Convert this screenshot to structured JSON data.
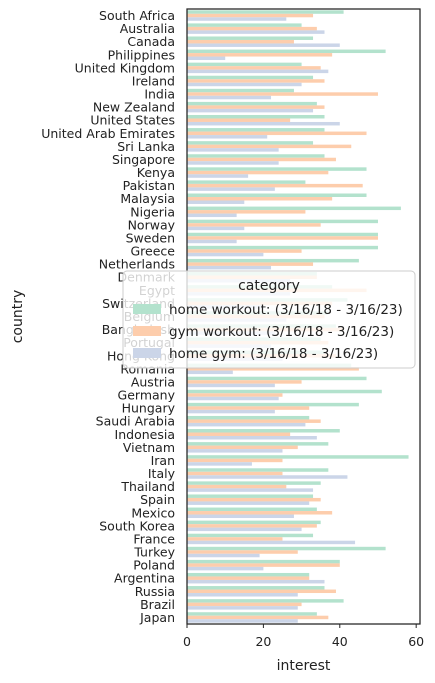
{
  "chart_data": {
    "type": "bar",
    "orientation": "horizontal",
    "xlabel": "interest",
    "ylabel": "country",
    "xlim": [
      0,
      61
    ],
    "xticks": [
      0,
      20,
      40,
      60
    ],
    "grid": false,
    "legend": {
      "title": "category",
      "placement": "center-right"
    },
    "categories": [
      "South Africa",
      "Australia",
      "Canada",
      "Philippines",
      "United Kingdom",
      "Ireland",
      "India",
      "New Zealand",
      "United States",
      "United Arab Emirates",
      "Sri Lanka",
      "Singapore",
      "Kenya",
      "Pakistan",
      "Malaysia",
      "Nigeria",
      "Norway",
      "Sweden",
      "Greece",
      "Netherlands",
      "Denmark",
      "Egypt",
      "Switzerland",
      "Belgium",
      "Bangladesh",
      "Portugal",
      "Hong Kong",
      "Romania",
      "Austria",
      "Germany",
      "Hungary",
      "Saudi Arabia",
      "Indonesia",
      "Vietnam",
      "Iran",
      "Italy",
      "Thailand",
      "Spain",
      "Mexico",
      "South Korea",
      "France",
      "Turkey",
      "Poland",
      "Argentina",
      "Russia",
      "Brazil",
      "Japan"
    ],
    "series": [
      {
        "name": "home workout: (3/16/18 - 3/16/23)",
        "color": "#b3e2cd",
        "values": [
          41,
          30,
          33,
          52,
          30,
          33,
          28,
          34,
          36,
          36,
          33,
          36,
          47,
          31,
          47,
          56,
          50,
          50,
          50,
          45,
          34,
          38,
          42,
          37,
          39,
          35,
          36,
          43,
          47,
          51,
          45,
          32,
          40,
          37,
          58,
          37,
          35,
          33,
          34,
          35,
          33,
          52,
          40,
          32,
          36,
          41,
          34
        ]
      },
      {
        "name": "gym workout: (3/16/18 - 3/16/23)",
        "color": "#fdcdac",
        "values": [
          33,
          34,
          28,
          38,
          35,
          36,
          50,
          36,
          27,
          47,
          43,
          39,
          37,
          46,
          38,
          31,
          35,
          50,
          30,
          33,
          34,
          47,
          38,
          36,
          41,
          37,
          39,
          45,
          30,
          25,
          32,
          35,
          27,
          29,
          25,
          25,
          26,
          35,
          38,
          34,
          25,
          29,
          40,
          32,
          39,
          30,
          37
        ]
      },
      {
        "name": "home gym: (3/16/18 - 3/16/23)",
        "color": "#cbd5e8",
        "values": [
          26,
          36,
          40,
          10,
          37,
          30,
          22,
          33,
          40,
          21,
          24,
          24,
          16,
          23,
          15,
          13,
          15,
          13,
          20,
          22,
          27,
          27,
          20,
          26,
          23,
          22,
          25,
          12,
          23,
          24,
          23,
          31,
          34,
          25,
          17,
          42,
          33,
          32,
          28,
          30,
          44,
          19,
          20,
          36,
          29,
          29,
          29
        ]
      }
    ]
  }
}
